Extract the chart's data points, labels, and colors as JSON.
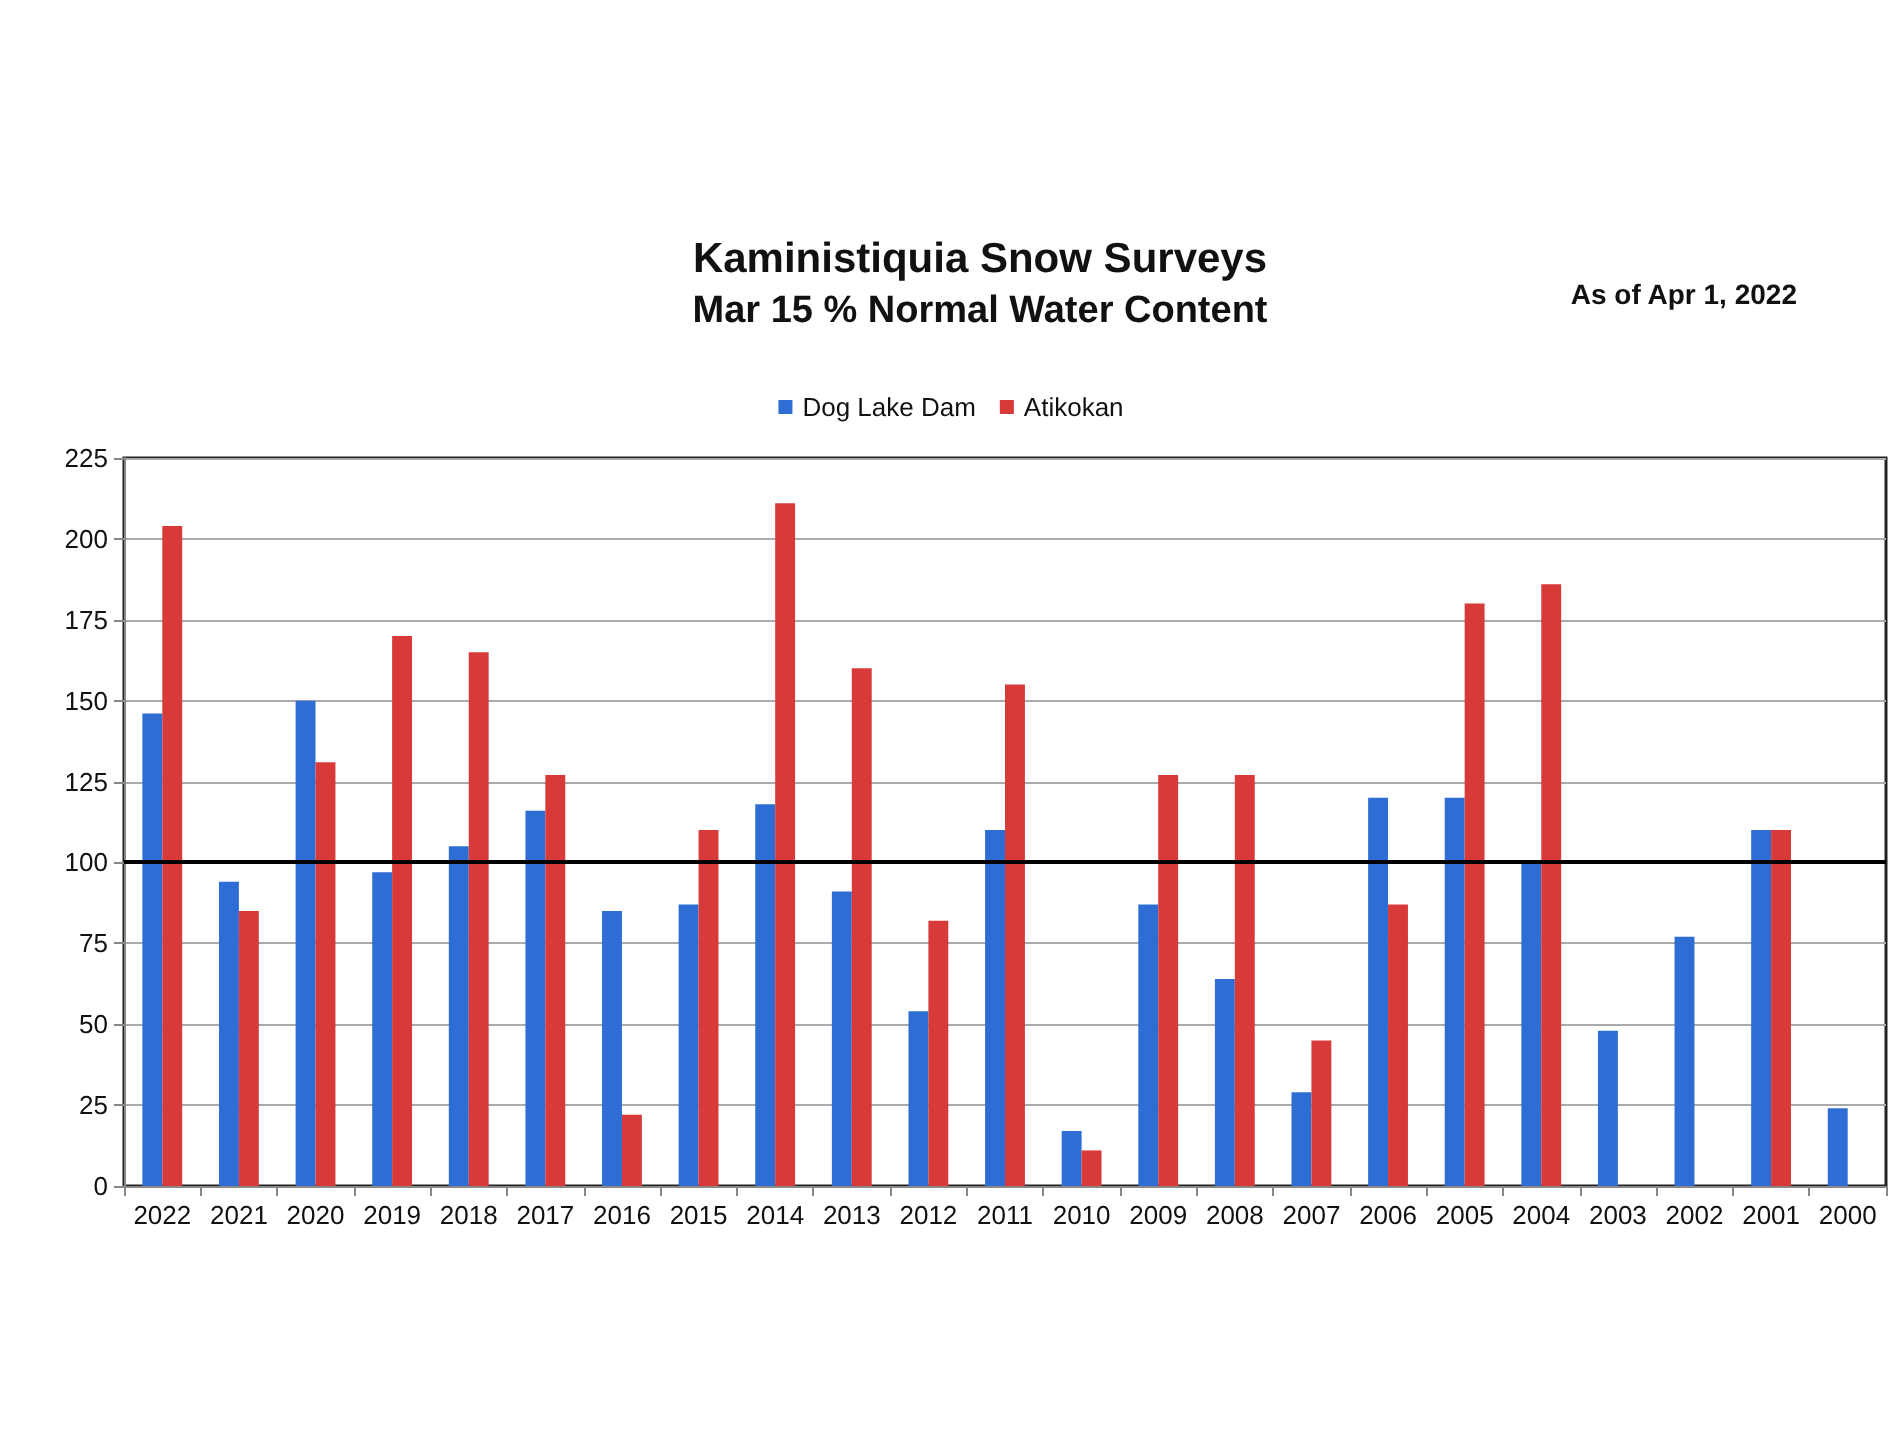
{
  "chart_data": {
    "type": "bar",
    "title": "Kaministiquia Snow Surveys",
    "subtitle": "Mar 15 % Normal Water Content",
    "annotations": [
      "As of Apr 1, 2022"
    ],
    "categories": [
      "2022",
      "2021",
      "2020",
      "2019",
      "2018",
      "2017",
      "2016",
      "2015",
      "2014",
      "2013",
      "2012",
      "2011",
      "2010",
      "2009",
      "2008",
      "2007",
      "2006",
      "2005",
      "2004",
      "2003",
      "2002",
      "2001",
      "2000"
    ],
    "series": [
      {
        "name": "Dog Lake Dam",
        "color": "#2e6ed4",
        "values": [
          146,
          94,
          150,
          97,
          105,
          116,
          85,
          87,
          118,
          91,
          54,
          110,
          17,
          87,
          64,
          29,
          120,
          120,
          100,
          48,
          77,
          110,
          24
        ]
      },
      {
        "name": "Atikokan",
        "color": "#d83a3a",
        "values": [
          204,
          85,
          131,
          170,
          165,
          127,
          22,
          110,
          211,
          160,
          82,
          155,
          11,
          127,
          127,
          45,
          87,
          180,
          186,
          null,
          null,
          110,
          null
        ]
      }
    ],
    "ylim": [
      0,
      225
    ],
    "yticks": [
      0,
      25,
      50,
      75,
      100,
      125,
      150,
      175,
      200,
      225
    ],
    "grid": "y",
    "legend": "top",
    "ref_lines": [
      {
        "axis": "y",
        "value": 100,
        "color": "#000000"
      }
    ]
  }
}
